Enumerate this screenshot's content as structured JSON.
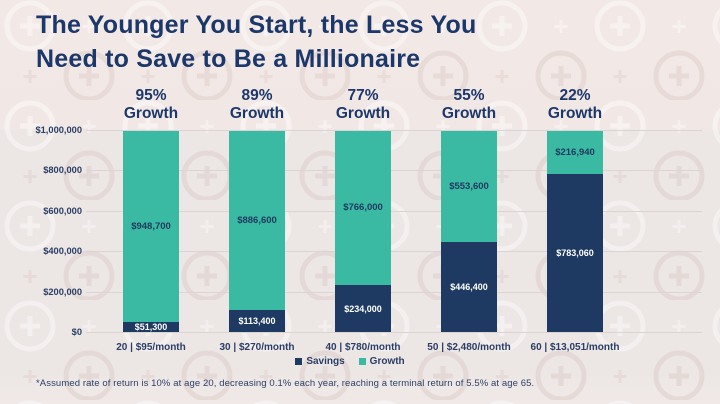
{
  "header": {
    "title_line1": "The Younger You Start, the Less You",
    "title_line2": "Need to Save to Be a Millionaire"
  },
  "chart_data": {
    "type": "bar",
    "stacked": true,
    "title": "The Younger You Start, the Less You Need to Save to Be a Millionaire",
    "categories": [
      "20 | $95/month",
      "30 | $270/month",
      "40 | $780/month",
      "50 | $2,480/month",
      "60 | $13,051/month"
    ],
    "column_headers": [
      "95% Growth",
      "89% Growth",
      "77% Growth",
      "55% Growth",
      "22% Growth"
    ],
    "series": [
      {
        "name": "Savings",
        "color": "#1E3A62",
        "values": [
          51300,
          113400,
          234000,
          446400,
          783060
        ],
        "labels": [
          "$51,300",
          "$113,400",
          "$234,000",
          "$446,400",
          "$783,060"
        ]
      },
      {
        "name": "Growth",
        "color": "#3ABAA2",
        "values": [
          948700,
          886600,
          766000,
          553600,
          216940
        ],
        "labels": [
          "$948,700",
          "$886,600",
          "$766,000",
          "$553,600",
          "$216,940"
        ]
      }
    ],
    "y_ticks": [
      {
        "value": 1000000,
        "label": "$1,000,000"
      },
      {
        "value": 800000,
        "label": "$800,000"
      },
      {
        "value": 600000,
        "label": "$600,000"
      },
      {
        "value": 400000,
        "label": "$400,000"
      },
      {
        "value": 200000,
        "label": "$200,000"
      },
      {
        "value": 0,
        "label": "$0"
      }
    ],
    "ylim": [
      0,
      1000000
    ],
    "grid": true,
    "legend_position": "bottom",
    "xlabel": "",
    "ylabel": ""
  },
  "legend": {
    "savings_label": "Savings",
    "growth_label": "Growth"
  },
  "footnote": "*Assumed rate of return is 10% at age 20, decreasing 0.1% each year, reaching a terminal return of 5.5% at age 65.",
  "colors": {
    "background": "#EFE7E4",
    "navy": "#1E3A62",
    "teal": "#3ABAA2",
    "title_text": "#1C3769",
    "axis_text": "#2A3E66",
    "gridline": "#DCD4D3"
  }
}
